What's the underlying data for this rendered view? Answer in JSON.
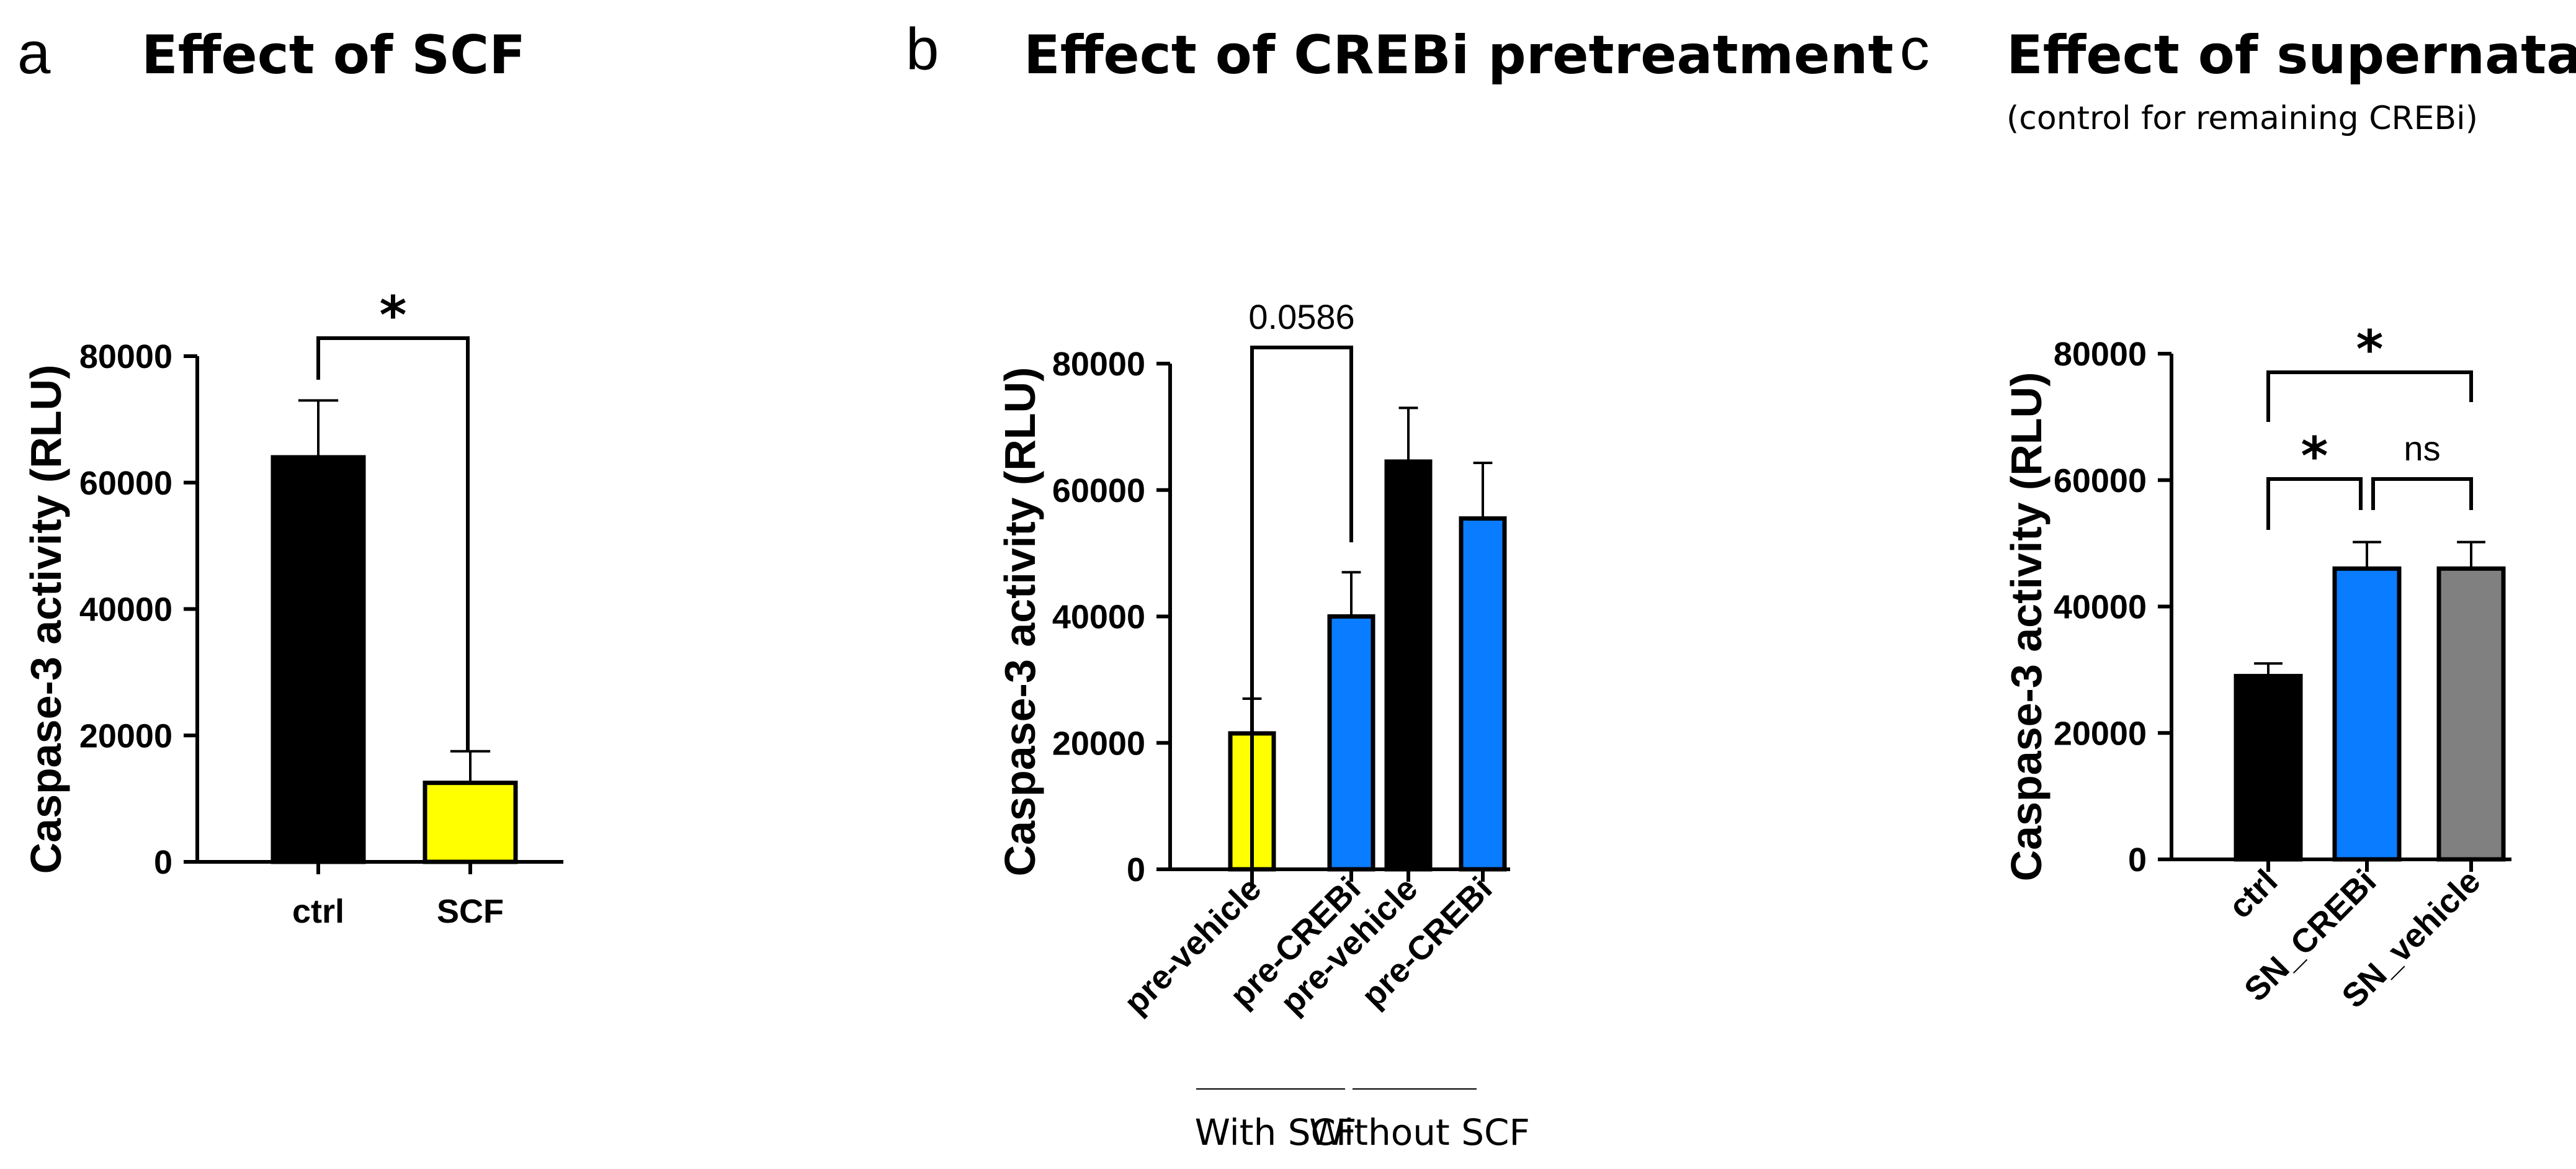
{
  "chart_data": [
    {
      "type": "bar",
      "panel_letter": "a",
      "title": "Effect of SCF",
      "subtitle": "",
      "xlabel": "",
      "ylabel": "Caspase-3 activity (RLU)",
      "ylim": [
        0,
        80000
      ],
      "yticks": [
        0,
        20000,
        40000,
        60000,
        80000
      ],
      "ytick_labels": [
        "0",
        "20000",
        "40000",
        "60000",
        "80000"
      ],
      "grid": false,
      "categories": [
        "ctrl",
        "SCF"
      ],
      "values": [
        64000,
        12500
      ],
      "errors": [
        9000,
        5000
      ],
      "colors": [
        "#000000",
        "#ffff00"
      ],
      "significance": [
        {
          "from": 0,
          "to": 1,
          "label": "*"
        }
      ],
      "groups": []
    },
    {
      "type": "bar",
      "panel_letter": "b",
      "title": "Effect of CREBi pretreatment",
      "subtitle": "",
      "xlabel": "",
      "ylabel": "Caspase-3 activity (RLU)",
      "ylim": [
        0,
        80000
      ],
      "yticks": [
        0,
        20000,
        40000,
        60000,
        80000
      ],
      "ytick_labels": [
        "0",
        "20000",
        "40000",
        "60000",
        "80000"
      ],
      "grid": false,
      "categories": [
        "pre-vehicle",
        "pre-CREBi",
        "pre-vehicle",
        "pre-CREBi"
      ],
      "values": [
        21500,
        40000,
        64500,
        55500
      ],
      "errors": [
        5500,
        7000,
        8500,
        8800
      ],
      "colors": [
        "#ffff00",
        "#0a7cff",
        "#000000",
        "#0a7cff"
      ],
      "significance": [
        {
          "from": 0,
          "to": 1,
          "label": "0.0586"
        }
      ],
      "groups": [
        {
          "label": "With SCF",
          "from": 0,
          "to": 1
        },
        {
          "label": "Without SCF",
          "from": 2,
          "to": 3
        }
      ]
    },
    {
      "type": "bar",
      "panel_letter": "c",
      "title": "Effect of supernatant",
      "subtitle": "(control for remaining CREBi)",
      "xlabel": "",
      "ylabel": "Caspase-3 activity (RLU)",
      "ylim": [
        0,
        80000
      ],
      "yticks": [
        0,
        20000,
        40000,
        60000,
        80000
      ],
      "ytick_labels": [
        "0",
        "20000",
        "40000",
        "60000",
        "80000"
      ],
      "grid": false,
      "categories": [
        "ctrl",
        "SN_CREBi",
        "SN_vehicle"
      ],
      "values": [
        29000,
        46000,
        46000
      ],
      "errors": [
        2000,
        4200,
        4200
      ],
      "colors": [
        "#000000",
        "#0a7cff",
        "#808080"
      ],
      "significance": [
        {
          "from": 0,
          "to": 2,
          "label": "*"
        },
        {
          "from": 0,
          "to": 1,
          "label": "*"
        },
        {
          "from": 1,
          "to": 2,
          "label": "ns"
        }
      ],
      "groups": []
    }
  ]
}
